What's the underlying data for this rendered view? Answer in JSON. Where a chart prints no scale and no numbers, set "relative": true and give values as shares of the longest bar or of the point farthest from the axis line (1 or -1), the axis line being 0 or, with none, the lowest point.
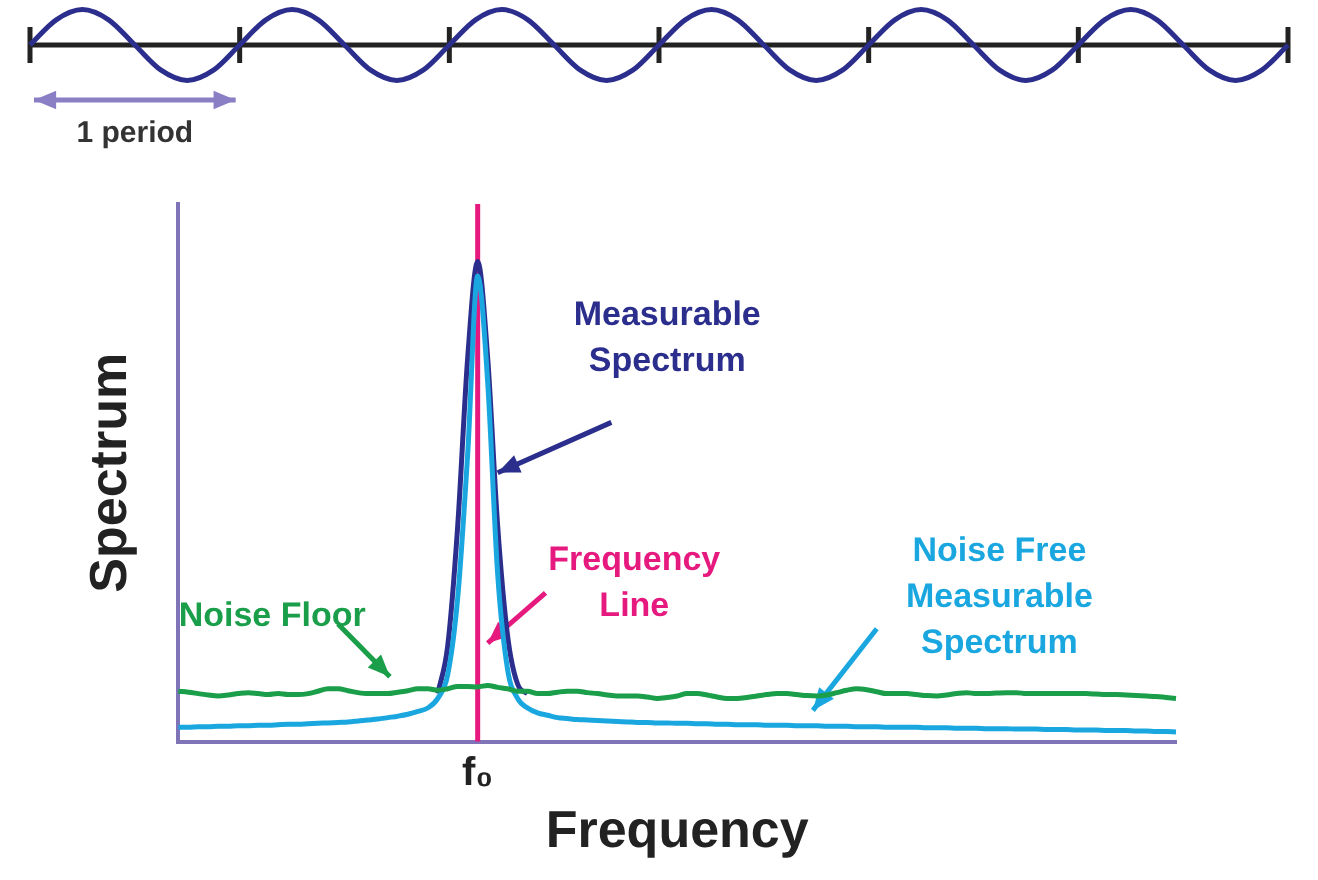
{
  "chart_data": [
    {
      "type": "line",
      "relative": true,
      "marker": "none",
      "categories": [
        null,
        null,
        null,
        null,
        null,
        null,
        null,
        null,
        null,
        null,
        null,
        null,
        null,
        null,
        null,
        null,
        null,
        null,
        null,
        null,
        null,
        null,
        null,
        null,
        null,
        null,
        null,
        null,
        null,
        null,
        null,
        null,
        null,
        null,
        null,
        null,
        null,
        null,
        null,
        null,
        null,
        null,
        null,
        null,
        null,
        null,
        null,
        null,
        null
      ],
      "series": [
        {
          "color": "#2b2e8c",
          "values": [
            0,
            0.71,
            1,
            0.71,
            0,
            -0.71,
            -1,
            -0.71,
            0,
            0.71,
            1,
            0.71,
            0,
            -0.71,
            -1,
            -0.71,
            0,
            0.71,
            1,
            0.71,
            0,
            -0.71,
            -1,
            -0.71,
            0,
            0.71,
            1,
            0.71,
            0,
            -0.71,
            -1,
            -0.71,
            0,
            0.71,
            1,
            0.71,
            0,
            -0.71,
            -1,
            -0.71,
            0,
            0.71,
            1,
            0.71,
            0,
            -0.71,
            -1,
            -0.71,
            0
          ]
        }
      ],
      "annotations": [
        "1 period"
      ]
    },
    {
      "type": "line",
      "relative": true,
      "marker": "none",
      "xlabel": "Frequency",
      "ylabel": "Spectrum",
      "categories": [
        null,
        null,
        null,
        null,
        null,
        null,
        null,
        null,
        null,
        null,
        null,
        null,
        null,
        null,
        null,
        null,
        null,
        null,
        null,
        null,
        null,
        null,
        null,
        null,
        null,
        null,
        null,
        null,
        null,
        null,
        null,
        null,
        null,
        null,
        null,
        null,
        null,
        null,
        null,
        null,
        null,
        null,
        null,
        null,
        null,
        null,
        null,
        null,
        null,
        null,
        null,
        null,
        null,
        null,
        null,
        null,
        null,
        null,
        null,
        null,
        null,
        null,
        null,
        null,
        null,
        null,
        null,
        null,
        null,
        null,
        null,
        null,
        null,
        null,
        null,
        null,
        null,
        null,
        null,
        null,
        null,
        null,
        null,
        null,
        null,
        null,
        null,
        null,
        null,
        null,
        null,
        null,
        null,
        null,
        null,
        null,
        null,
        null,
        null,
        null,
        null
      ],
      "series": [
        {
          "name": "Noise Floor",
          "color": "#1a9e4a",
          "values": [
            0.105,
            0.103,
            0.1,
            0.097,
            0.095,
            0.097,
            0.1,
            0.102,
            0.1,
            0.098,
            0.1,
            0.098,
            0.098,
            0.1,
            0.105,
            0.11,
            0.11,
            0.106,
            0.102,
            0.1,
            0.1,
            0.1,
            0.103,
            0.106,
            0.11,
            0.11,
            0.107,
            0.11,
            0.115,
            0.115,
            0.114,
            0.117,
            0.113,
            0.11,
            0.105,
            0.105,
            0.1,
            0.1,
            0.103,
            0.105,
            0.105,
            0.102,
            0.1,
            0.097,
            0.095,
            0.095,
            0.095,
            0.093,
            0.09,
            0.092,
            0.095,
            0.1,
            0.1,
            0.097,
            0.093,
            0.09,
            0.09,
            0.092,
            0.095,
            0.098,
            0.1,
            0.1,
            0.098,
            0.096,
            0.095,
            0.097,
            0.102,
            0.107,
            0.11,
            0.108,
            0.104,
            0.1,
            0.1,
            0.1,
            0.098,
            0.096,
            0.095,
            0.097,
            0.1,
            0.102,
            0.1,
            0.1,
            0.101,
            0.102,
            0.102,
            0.1,
            0.1,
            0.1,
            0.1,
            0.1,
            0.1,
            0.1,
            0.099,
            0.098,
            0.098,
            0.097,
            0.096,
            0.095,
            0.094,
            0.092,
            0.09
          ]
        },
        {
          "name": "Noise Free Measurable Spectrum",
          "color": "#1aa7e0",
          "values": [
            0.03,
            0.03,
            0.031,
            0.031,
            0.032,
            0.032,
            0.033,
            0.033,
            0.034,
            0.034,
            0.035,
            0.036,
            0.036,
            0.037,
            0.038,
            0.039,
            0.04,
            0.041,
            0.043,
            0.045,
            0.047,
            0.05,
            0.053,
            0.057,
            0.063,
            0.07,
            0.09,
            0.14,
            0.3,
            0.6,
            0.97,
            0.75,
            0.35,
            0.15,
            0.09,
            0.07,
            0.06,
            0.055,
            0.05,
            0.048,
            0.046,
            0.045,
            0.044,
            0.043,
            0.042,
            0.041,
            0.04,
            0.04,
            0.039,
            0.039,
            0.038,
            0.038,
            0.037,
            0.037,
            0.036,
            0.036,
            0.035,
            0.035,
            0.035,
            0.034,
            0.034,
            0.034,
            0.033,
            0.033,
            0.033,
            0.032,
            0.032,
            0.032,
            0.031,
            0.031,
            0.031,
            0.03,
            0.03,
            0.03,
            0.03,
            0.029,
            0.029,
            0.029,
            0.028,
            0.028,
            0.028,
            0.027,
            0.027,
            0.027,
            0.026,
            0.026,
            0.026,
            0.025,
            0.025,
            0.025,
            0.024,
            0.024,
            0.024,
            0.023,
            0.023,
            0.023,
            0.022,
            0.022,
            0.021,
            0.021,
            0.02
          ]
        },
        {
          "name": "Measurable Spectrum",
          "color": "#2b2e8c",
          "values": [
            null,
            null,
            null,
            null,
            null,
            null,
            null,
            null,
            null,
            null,
            null,
            null,
            null,
            null,
            null,
            null,
            null,
            null,
            null,
            null,
            null,
            null,
            null,
            null,
            null,
            null,
            0.1,
            0.2,
            0.45,
            0.8,
            1,
            0.8,
            0.45,
            0.22,
            0.12,
            0.1,
            null,
            null,
            null,
            null,
            null,
            null,
            null,
            null,
            null,
            null,
            null,
            null,
            null,
            null,
            null,
            null,
            null,
            null,
            null,
            null,
            null,
            null,
            null,
            null,
            null,
            null,
            null,
            null,
            null,
            null,
            null,
            null,
            null,
            null,
            null,
            null,
            null,
            null,
            null,
            null,
            null,
            null,
            null,
            null,
            null,
            null,
            null,
            null,
            null,
            null,
            null,
            null,
            null,
            null,
            null,
            null,
            null,
            null,
            null,
            null,
            null,
            null,
            null,
            null,
            null
          ]
        }
      ],
      "annotations": [
        "f₀",
        "Frequency Line"
      ]
    }
  ]
}
